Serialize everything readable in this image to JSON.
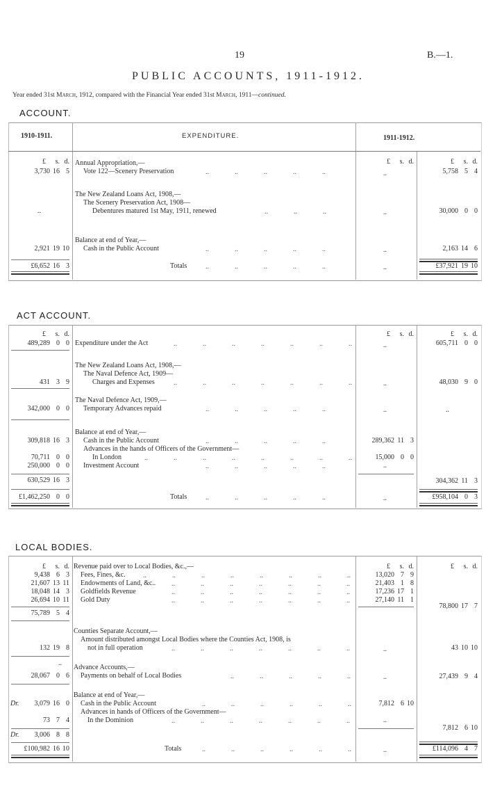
{
  "header": {
    "page_number": "19",
    "reference": "B.—1.",
    "title": "PUBLIC ACCOUNTS, 1911-1912.",
    "subtitle": {
      "a": "Year ended 31st ",
      "b": "March",
      "c": ", 1912, compared with the Financial Year ended 31st ",
      "d": "March",
      "e": ", 1911—",
      "f": "continued."
    }
  },
  "leader": "..",
  "nil": "..",
  "currency": {
    "l": "£",
    "s": "s.",
    "d": "d."
  },
  "sections": [
    {
      "heading": "ACCOUNT.",
      "col_headers": {
        "previous": "1910-1911.",
        "description": "EXPENDITURE.",
        "current": "1911-1912."
      },
      "desc": [
        "Annual Appropriation,—",
        "Vote 122—Scenery Preservation",
        "The New Zealand Loans Act, 1908,—",
        "The Scenery Preservation Act, 1908—",
        "Debentures matured 1st May, 1911, renewed",
        "Balance at end of Year,—",
        "Cash in the Public Account",
        "Totals"
      ],
      "left": [
        {
          "l": "3,730",
          "s": "16",
          "d": "5"
        },
        {
          "l": "2,921",
          "s": "19",
          "d": "10"
        },
        {
          "l": "£6,652",
          "s": "16",
          "d": "3"
        }
      ],
      "inner": [],
      "right": [
        {
          "l": "5,758",
          "s": "5",
          "d": "4"
        },
        {
          "l": "30,000",
          "s": "0",
          "d": "0"
        },
        {
          "l": "2,163",
          "s": "14",
          "d": "6"
        },
        {
          "l": "£37,921",
          "s": "19",
          "d": "10"
        }
      ]
    },
    {
      "heading": "ACT ACCOUNT.",
      "desc": [
        "Expenditure under the Act",
        "The New Zealand Loans Act, 1908,—",
        "The Naval Defence Act, 1909—",
        "Charges and Expenses",
        "The Naval Defence Act, 1909,—",
        "Temporary Advances repaid",
        "Balance at end of Year,—",
        "Cash in the Public Account",
        "Advances in the hands of Officers of the Government—",
        "In London",
        "Investment Account",
        "Totals"
      ],
      "left": [
        {
          "l": "489,289",
          "s": "0",
          "d": "0"
        },
        {
          "l": "431",
          "s": "3",
          "d": "9"
        },
        {
          "l": "342,000",
          "s": "0",
          "d": "0"
        },
        {
          "l": "309,818",
          "s": "16",
          "d": "3"
        },
        {
          "l": "70,711",
          "s": "0",
          "d": "0"
        },
        {
          "l": "250,000",
          "s": "0",
          "d": "0"
        },
        {
          "l": "630,529",
          "s": "16",
          "d": "3"
        },
        {
          "l": "£1,462,250",
          "s": "0",
          "d": "0"
        }
      ],
      "inner": [
        {
          "l": "289,362",
          "s": "11",
          "d": "3"
        },
        {
          "l": "15,000",
          "s": "0",
          "d": "0"
        }
      ],
      "right": [
        {
          "l": "605,711",
          "s": "0",
          "d": "0"
        },
        {
          "l": "48,030",
          "s": "9",
          "d": "0"
        },
        {
          "l": "304,362",
          "s": "11",
          "d": "3"
        },
        {
          "l": "£958,104",
          "s": "0",
          "d": "3"
        }
      ]
    },
    {
      "heading": "LOCAL BODIES.",
      "desc": [
        "Revenue paid over to Local Bodies, &c.,—",
        "Fees, Fines, &c.",
        "Endowments of Land, &c..",
        "Goldfields Revenue",
        "Gold Duty",
        "Counties Separate Account,—",
        "Amount distributed amongst Local Bodies where the Counties Act, 1908, is",
        "not in full operation",
        "Advance Accounts,—",
        "Payments on behalf of Local Bodies",
        "Balance at end of Year,—",
        "Cash in the Public Account",
        "Advances in hands of Officers of the Government—",
        "In the Dominion",
        "Totals"
      ],
      "left": [
        {
          "l": "9,438",
          "s": "6",
          "d": "3"
        },
        {
          "l": "21,607",
          "s": "13",
          "d": "11"
        },
        {
          "l": "18,048",
          "s": "14",
          "d": "3"
        },
        {
          "l": "26,694",
          "s": "10",
          "d": "11"
        },
        {
          "l": "75,789",
          "s": "5",
          "d": "4"
        },
        {
          "l": "132",
          "s": "19",
          "d": "8"
        },
        {
          "l": "28,067",
          "s": "0",
          "d": "6"
        },
        {
          "prefix": "Dr.",
          "l": "3,079",
          "s": "16",
          "d": "0"
        },
        {
          "l": "73",
          "s": "7",
          "d": "4"
        },
        {
          "prefix": "Dr.",
          "l": "3,006",
          "s": "8",
          "d": "8"
        },
        {
          "l": "£100,982",
          "s": "16",
          "d": "10"
        }
      ],
      "inner": [
        {
          "l": "13,020",
          "s": "7",
          "d": "9"
        },
        {
          "l": "21,403",
          "s": "1",
          "d": "8"
        },
        {
          "l": "17,236",
          "s": "17",
          "d": "1"
        },
        {
          "l": "27,140",
          "s": "11",
          "d": "1"
        },
        {
          "l": "7,812",
          "s": "6",
          "d": "10"
        }
      ],
      "right": [
        {
          "l": "78,800",
          "s": "17",
          "d": "7"
        },
        {
          "l": "43",
          "s": "10",
          "d": "10"
        },
        {
          "l": "27,439",
          "s": "9",
          "d": "4"
        },
        {
          "l": "7,812",
          "s": "6",
          "d": "10"
        },
        {
          "l": "£114,096",
          "s": "4",
          "d": "7"
        }
      ]
    }
  ]
}
